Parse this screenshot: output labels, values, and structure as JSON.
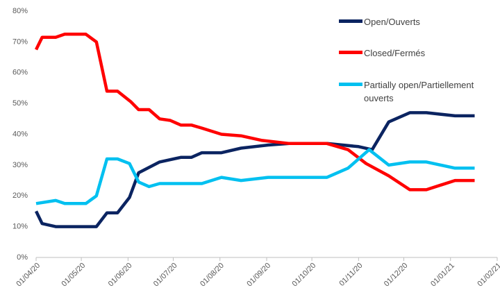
{
  "chart_data": {
    "type": "line",
    "xlim": [
      "2020-04-01",
      "2021-02-01"
    ],
    "xticks": [
      {
        "value": "2020-04-01",
        "label": "01/04/20"
      },
      {
        "value": "2020-05-01",
        "label": "01/05/20"
      },
      {
        "value": "2020-06-01",
        "label": "01/06/20"
      },
      {
        "value": "2020-07-01",
        "label": "01/07/20"
      },
      {
        "value": "2020-08-01",
        "label": "01/08/20"
      },
      {
        "value": "2020-09-01",
        "label": "01/09/20"
      },
      {
        "value": "2020-10-01",
        "label": "01/10/20"
      },
      {
        "value": "2020-11-01",
        "label": "01/11/20"
      },
      {
        "value": "2020-12-01",
        "label": "01/12/20"
      },
      {
        "value": "2021-01-01",
        "label": "01/01/21"
      },
      {
        "value": "2021-02-01",
        "label": "01/02/21"
      }
    ],
    "ylim": [
      0,
      80
    ],
    "yticks": [
      {
        "value": 0,
        "label": "0%"
      },
      {
        "value": 10,
        "label": "10%"
      },
      {
        "value": 20,
        "label": "20%"
      },
      {
        "value": 30,
        "label": "30%"
      },
      {
        "value": 40,
        "label": "40%"
      },
      {
        "value": 50,
        "label": "50%"
      },
      {
        "value": 60,
        "label": "60%"
      },
      {
        "value": 70,
        "label": "70%"
      },
      {
        "value": 80,
        "label": "80%"
      }
    ],
    "grid": false,
    "legend": "upper right",
    "series": [
      {
        "name": "Open/Ouverts",
        "color": "#0b2461",
        "x": [
          "2020-04-01",
          "2020-04-05",
          "2020-04-14",
          "2020-05-11",
          "2020-05-18",
          "2020-05-25",
          "2020-06-02",
          "2020-06-08",
          "2020-06-22",
          "2020-07-06",
          "2020-07-13",
          "2020-07-20",
          "2020-08-02",
          "2020-08-15",
          "2020-09-02",
          "2020-09-16",
          "2020-10-11",
          "2020-11-01",
          "2020-11-10",
          "2020-11-21",
          "2020-12-05",
          "2020-12-16",
          "2021-01-04",
          "2021-01-17"
        ],
        "values": [
          15,
          11,
          10,
          10,
          14.5,
          14.5,
          19.5,
          27.5,
          31,
          32.5,
          32.5,
          34,
          34,
          35.5,
          36.5,
          37,
          37,
          36,
          35,
          44,
          47,
          47,
          46,
          46
        ]
      },
      {
        "name": "Closed/Fermés",
        "color": "#ff0000",
        "x": [
          "2020-04-01",
          "2020-04-05",
          "2020-04-14",
          "2020-04-20",
          "2020-05-04",
          "2020-05-11",
          "2020-05-18",
          "2020-05-25",
          "2020-06-03",
          "2020-06-08",
          "2020-06-15",
          "2020-06-22",
          "2020-06-29",
          "2020-07-06",
          "2020-07-13",
          "2020-07-20",
          "2020-08-02",
          "2020-08-15",
          "2020-08-29",
          "2020-09-16",
          "2020-10-11",
          "2020-10-25",
          "2020-11-06",
          "2020-11-21",
          "2020-12-05",
          "2020-12-16",
          "2021-01-04",
          "2021-01-17"
        ],
        "values": [
          67.5,
          71.5,
          71.5,
          72.5,
          72.5,
          70,
          54,
          54,
          50.5,
          48,
          48,
          45,
          44.5,
          43,
          43,
          42,
          40,
          39.5,
          38,
          37,
          37,
          35,
          30.5,
          26.5,
          22,
          22,
          25,
          25
        ]
      },
      {
        "name": "Partially open/Partiellement ouverts",
        "color": "#00c0f0",
        "x": [
          "2020-04-01",
          "2020-04-14",
          "2020-04-20",
          "2020-05-04",
          "2020-05-11",
          "2020-05-18",
          "2020-05-25",
          "2020-06-02",
          "2020-06-08",
          "2020-06-15",
          "2020-06-22",
          "2020-07-20",
          "2020-08-02",
          "2020-08-15",
          "2020-09-02",
          "2020-10-11",
          "2020-10-25",
          "2020-11-08",
          "2020-11-21",
          "2020-12-05",
          "2020-12-16",
          "2021-01-04",
          "2021-01-17"
        ],
        "values": [
          17.5,
          18.5,
          17.5,
          17.5,
          20,
          32,
          32,
          30.5,
          24.5,
          23,
          24,
          24,
          26,
          25,
          26,
          26,
          29,
          35,
          30,
          31,
          31,
          29,
          29
        ]
      }
    ]
  }
}
